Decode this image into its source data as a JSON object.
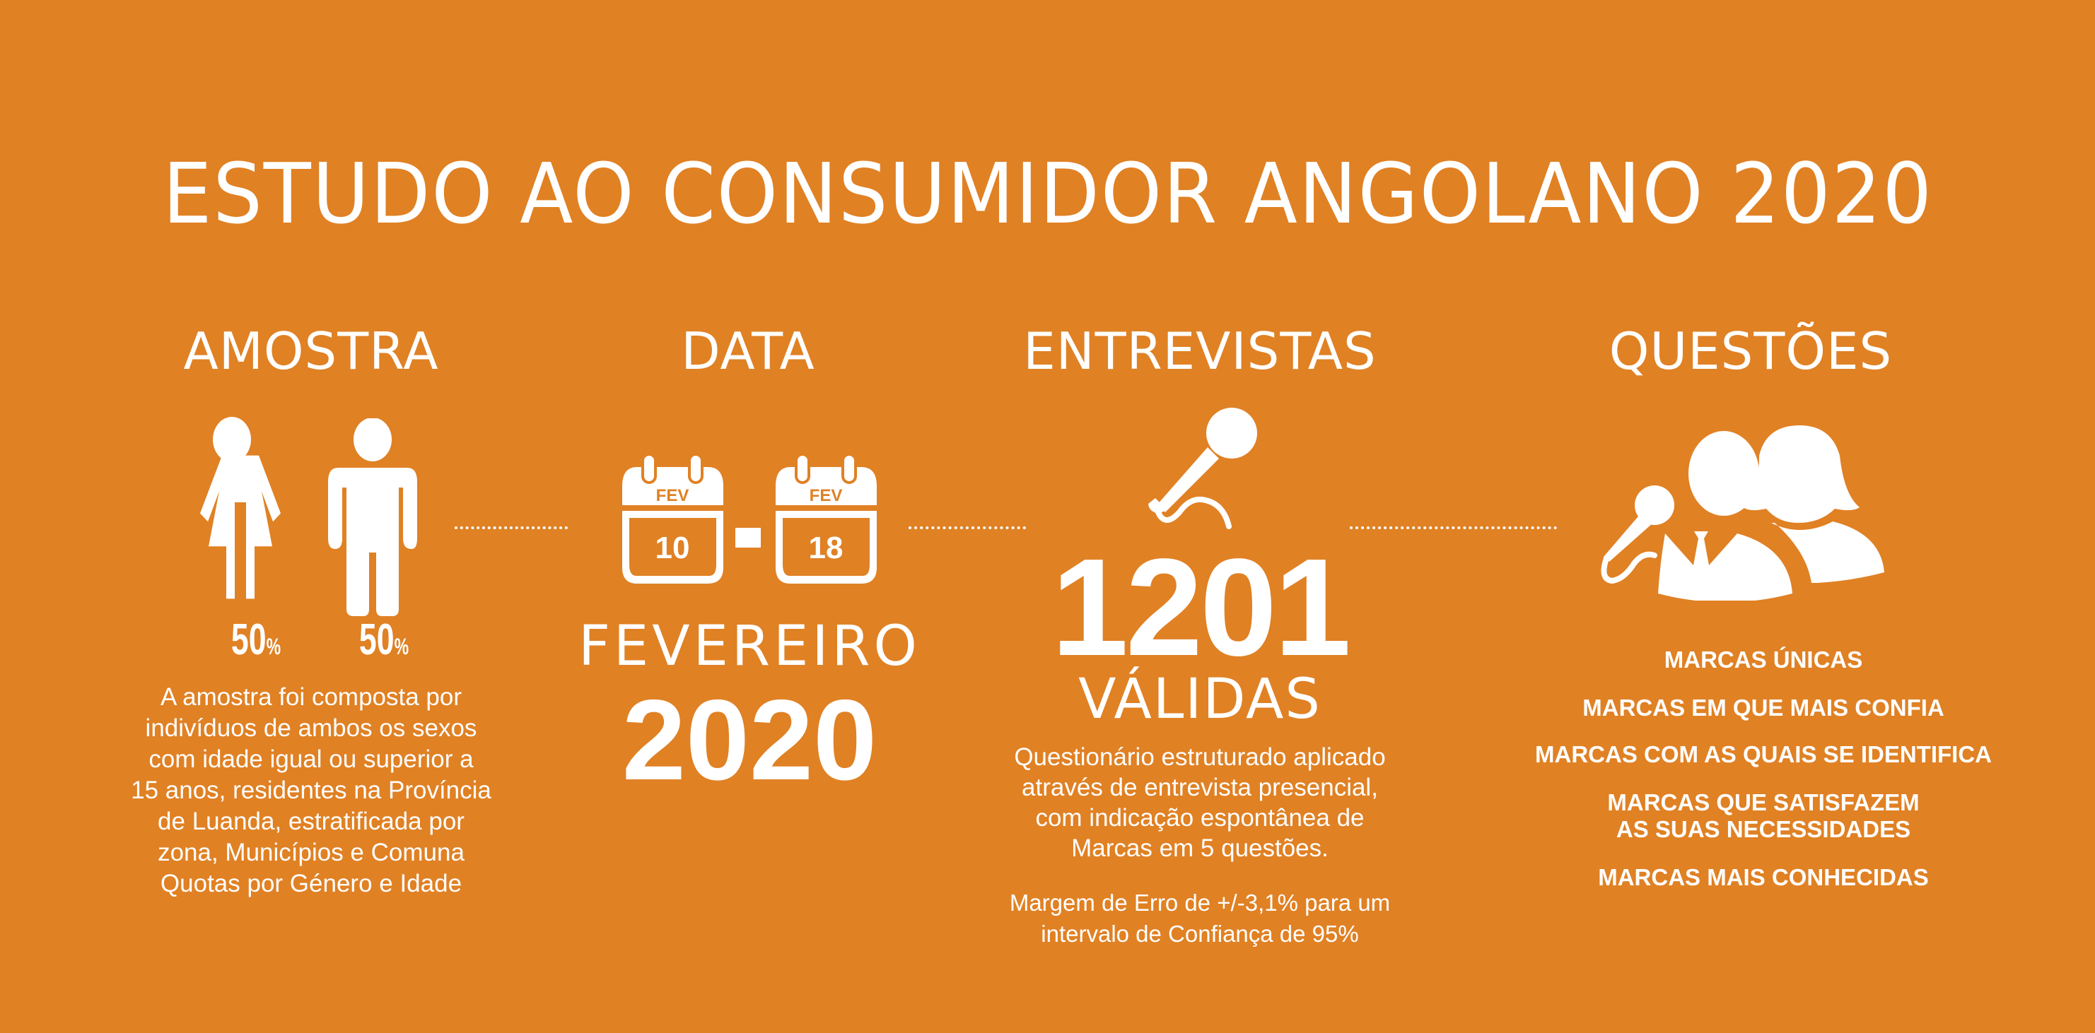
{
  "title": "ESTUDO AO CONSUMIDOR ANGOLANO 2020",
  "colors": {
    "background": "#E08124",
    "foreground": "#FFFFFF"
  },
  "amostra": {
    "heading": "AMOSTRA",
    "icons": [
      "woman-icon",
      "man-icon"
    ],
    "female_pct": "50",
    "male_pct": "50",
    "pct_sign": "%",
    "description": [
      "A amostra foi composta por",
      "indivíduos de ambos os sexos",
      "com idade igual ou superior a",
      "15 anos, residentes na Província",
      "de Luanda, estratificada por",
      "zona, Municípios e Comuna",
      "Quotas por Género e Idade"
    ]
  },
  "data": {
    "heading": "DATA",
    "calendar_start": {
      "month": "FEV",
      "day": "10"
    },
    "calendar_end": {
      "month": "FEV",
      "day": "18"
    },
    "month": "FEVEREIRO",
    "year": "2020"
  },
  "entrevistas": {
    "heading": "ENTREVISTAS",
    "icon": "microphone-icon",
    "count": "1201",
    "count_label": "VÁLIDAS",
    "description": [
      "Questionário estruturado aplicado",
      "através de entrevista presencial,",
      "com indicação espontânea de",
      "Marcas em 5 questões."
    ],
    "margin": [
      "Margem de Erro de +/-3,1% para um",
      "intervalo de Confiança de 95%"
    ]
  },
  "questoes": {
    "heading": "QUESTÕES",
    "icon": "interview-people-icon",
    "items": [
      [
        "MARCAS ÚNICAS"
      ],
      [
        "MARCAS EM QUE MAIS CONFIA"
      ],
      [
        "MARCAS COM AS QUAIS SE IDENTIFICA"
      ],
      [
        "MARCAS QUE SATISFAZEM",
        "AS SUAS NECESSIDADES"
      ],
      [
        "MARCAS MAIS CONHECIDAS"
      ]
    ]
  }
}
